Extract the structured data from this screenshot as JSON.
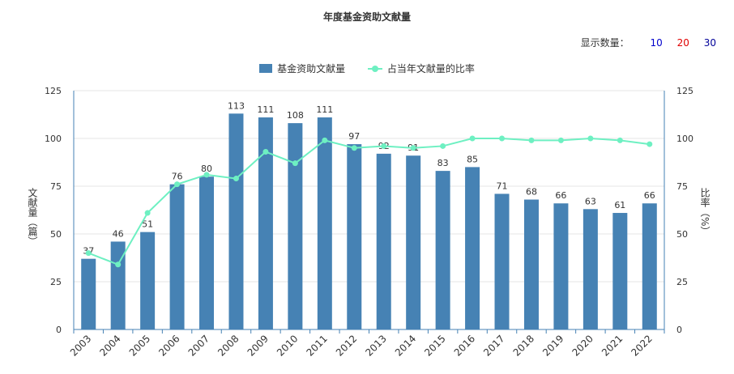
{
  "title": "年度基金资助文献量",
  "count_selector": {
    "label": "显示数量：",
    "options": [
      "10",
      "20",
      "30"
    ],
    "option_colors": [
      "#0000cc",
      "#e00000",
      "#000099"
    ]
  },
  "legend": {
    "bar_label": "基金资助文献量",
    "line_label": "占当年文献量的比率"
  },
  "colors": {
    "bar": "#4682B4",
    "line": "#6EF0C2",
    "axis": "#4682B4",
    "grid": "#e6e6e6"
  },
  "chart_data": {
    "type": "bar",
    "title": "年度基金资助文献量",
    "categories": [
      "2003",
      "2004",
      "2005",
      "2006",
      "2007",
      "2008",
      "2009",
      "2010",
      "2011",
      "2012",
      "2013",
      "2014",
      "2015",
      "2016",
      "2017",
      "2018",
      "2019",
      "2020",
      "2021",
      "2022"
    ],
    "series": [
      {
        "name": "基金资助文献量",
        "type": "bar",
        "axis": "left",
        "values": [
          37,
          46,
          51,
          76,
          80,
          113,
          111,
          108,
          111,
          97,
          92,
          91,
          83,
          85,
          71,
          68,
          66,
          63,
          61,
          66
        ]
      },
      {
        "name": "占当年文献量的比率",
        "type": "line",
        "axis": "right",
        "values": [
          40,
          34,
          61,
          76,
          81,
          79,
          93,
          87,
          99,
          95,
          96,
          95,
          96,
          100,
          100,
          99,
          99,
          100,
          99,
          97
        ]
      }
    ],
    "ylabel": "文献量（篇）",
    "y2label": "比率（%）",
    "ylim": [
      0,
      125
    ],
    "y2lim": [
      0,
      125
    ],
    "yticks": [
      0,
      25,
      50,
      75,
      100,
      125
    ],
    "grid": true,
    "legend_position": "top-center"
  }
}
